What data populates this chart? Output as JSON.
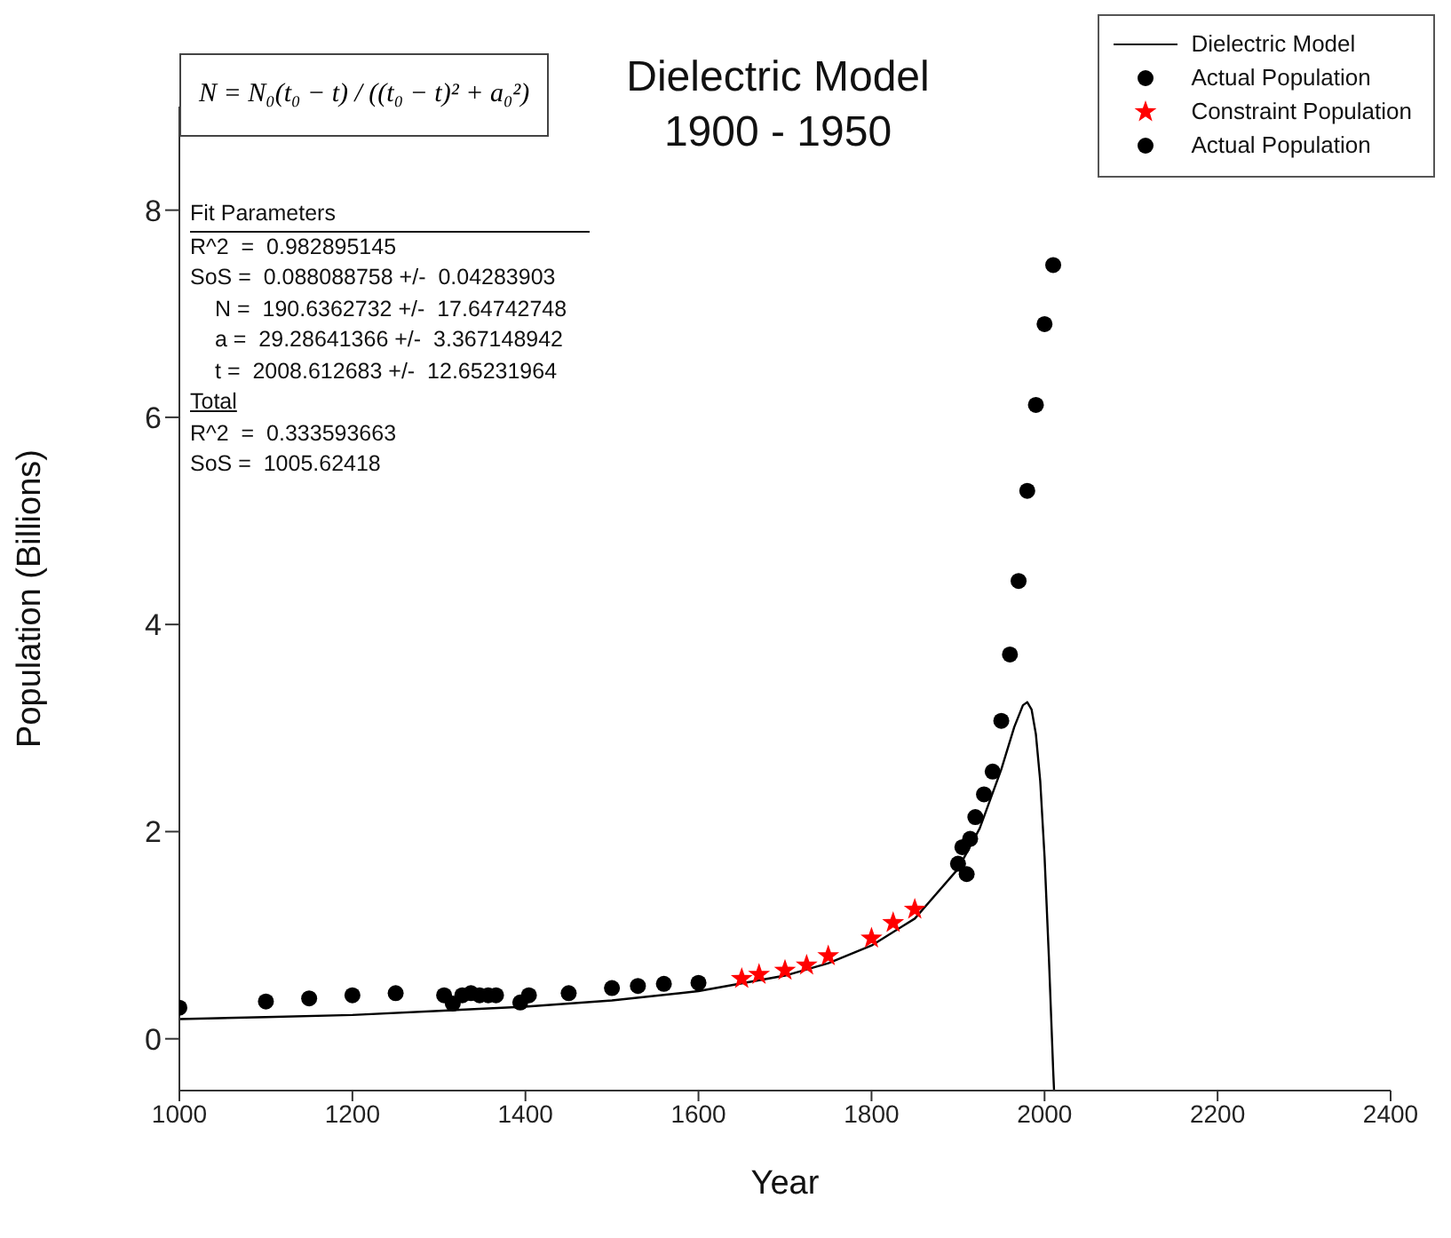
{
  "chart_data": {
    "type": "scatter",
    "title": "Dielectric Model",
    "subtitle": "1900 - 1950",
    "xlabel": "Year",
    "ylabel": "Population (Billions)",
    "xlim": [
      1000,
      2400
    ],
    "xticks": [
      1000,
      1200,
      1400,
      1600,
      1800,
      2000,
      2200,
      2400
    ],
    "ylim": [
      -0.5,
      9
    ],
    "yticks": [
      0,
      2,
      4,
      6,
      8
    ],
    "grid": false,
    "legend": "top right",
    "series": [
      {
        "name": "Dielectric Model",
        "type": "line",
        "color": "#000000",
        "marker": "none",
        "line_style": "solid",
        "x": [
          1000,
          1100,
          1200,
          1300,
          1400,
          1500,
          1600,
          1700,
          1750,
          1800,
          1850,
          1900,
          1925,
          1950,
          1965,
          1975,
          1980,
          1985,
          1990,
          1995,
          2000,
          2005,
          2008.6,
          2010,
          2011
        ],
        "values": [
          0.19,
          0.21,
          0.23,
          0.27,
          0.31,
          0.37,
          0.46,
          0.61,
          0.73,
          0.9,
          1.16,
          1.64,
          2.03,
          2.6,
          3.01,
          3.22,
          3.25,
          3.18,
          2.94,
          2.49,
          1.76,
          0.79,
          0,
          -0.31,
          -0.5
        ]
      },
      {
        "name": "Actual Population",
        "color": "#000000",
        "marker": "circle",
        "x": [
          1000,
          1100,
          1150,
          1200,
          1250,
          1300,
          1306,
          1316,
          1327,
          1337,
          1347,
          1357,
          1366,
          1394,
          1404,
          1450,
          1500,
          1530,
          1560,
          1600
        ],
        "values": [
          0.3,
          0.36,
          0.39,
          0.42,
          0.44,
          null,
          0.42,
          0.34,
          0.42,
          0.44,
          0.42,
          0.42,
          0.42,
          0.35,
          0.42,
          0.44,
          0.49,
          0.51,
          0.53,
          0.54
        ]
      },
      {
        "name": "Constraint Population",
        "color": "#ff0000",
        "marker": "star",
        "x": [
          1650,
          1670,
          1700,
          1725,
          1750,
          1800,
          1825,
          1850
        ],
        "values": [
          0.58,
          0.62,
          0.66,
          0.71,
          0.8,
          0.97,
          1.12,
          1.25
        ]
      },
      {
        "name": "Actual Population",
        "color": "#000000",
        "marker": "circle",
        "x": [
          1900,
          1905,
          1910,
          1914,
          1920,
          1930,
          1940,
          1950,
          1960,
          1970,
          1980,
          1990,
          2000,
          2010
        ],
        "values": [
          1.69,
          1.85,
          1.59,
          1.93,
          2.14,
          2.36,
          2.58,
          3.07,
          3.71,
          4.42,
          5.29,
          6.12,
          6.9,
          7.47
        ]
      }
    ],
    "annotations": [
      "N = N₀(t₀ − t) / ((t₀ − t)² + a₀²)",
      "Fit Parameters",
      "R^2  =  0.982895145",
      "SoS =  0.088088758 +/-  0.04283903",
      "N =  190.6362732 +/-  17.64742748",
      "a =  29.28641366 +/-  3.367148942",
      "t =  2008.612683 +/-  12.65231964",
      "Total",
      "R^2  =  0.333593663",
      "SoS =  1005.62418"
    ]
  }
}
